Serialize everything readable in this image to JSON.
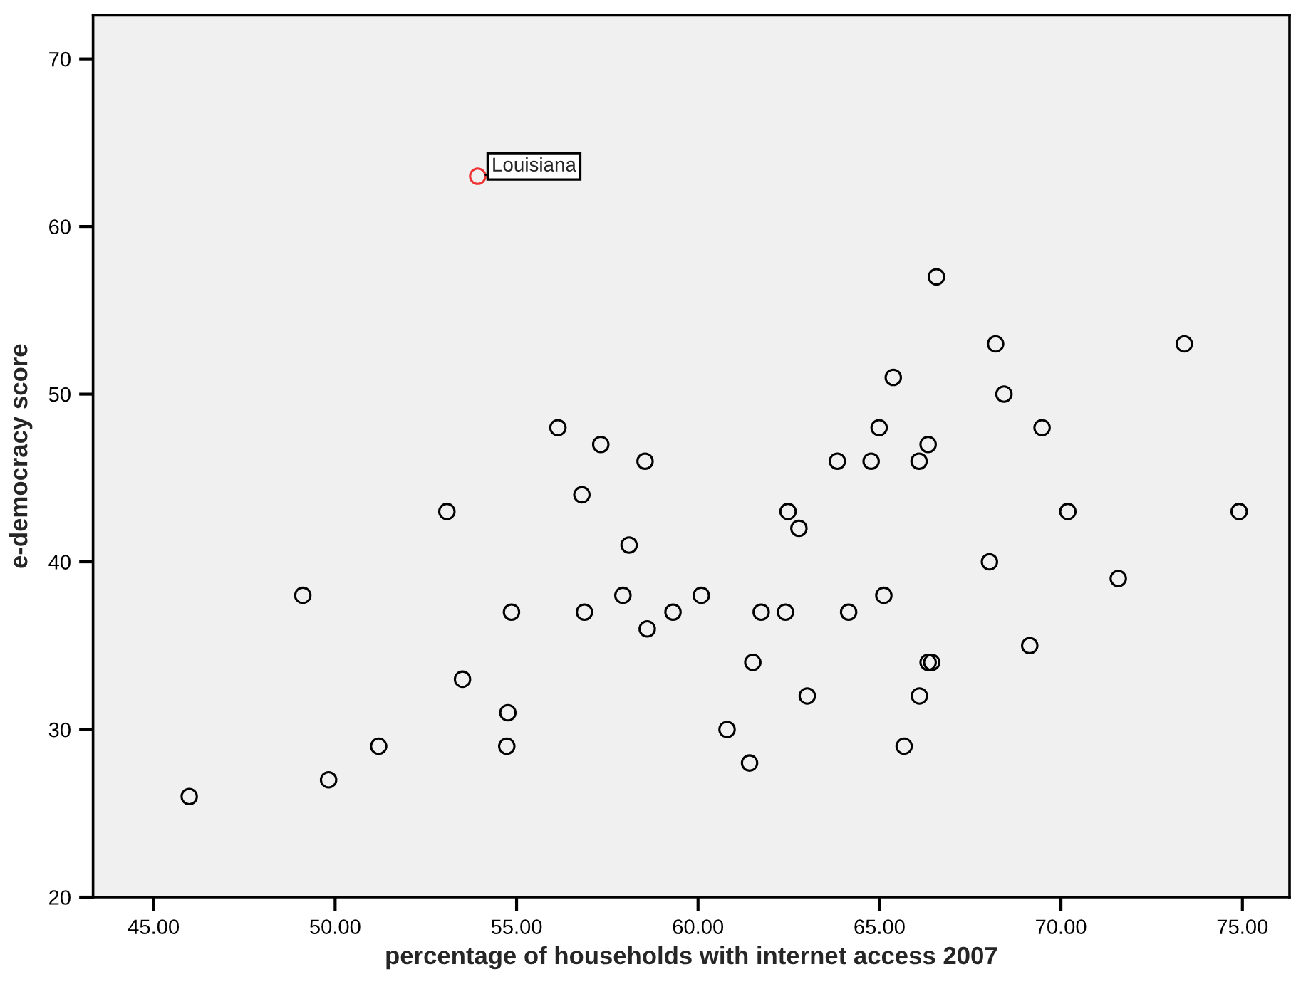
{
  "chart_data": {
    "type": "scatter",
    "xlabel": "percentage of households with internet access 2007",
    "ylabel": "e-democracy score",
    "x": [
      45.98,
      49.11,
      49.82,
      51.2,
      53.08,
      53.51,
      53.93,
      54.73,
      54.76,
      54.86,
      56.14,
      56.8,
      56.87,
      57.32,
      57.93,
      58.1,
      58.54,
      58.6,
      59.31,
      60.09,
      60.8,
      61.42,
      61.51,
      61.74,
      62.41,
      62.48,
      62.78,
      63.01,
      63.84,
      64.15,
      64.77,
      64.99,
      65.12,
      65.38,
      65.68,
      66.09,
      66.1,
      66.34,
      66.34,
      66.44,
      66.57,
      68.03,
      68.2,
      68.43,
      69.14,
      69.48,
      70.19,
      71.58,
      73.4,
      74.91
    ],
    "values": [
      26,
      38,
      27,
      29,
      43,
      33,
      63,
      29,
      31,
      37,
      48,
      44,
      37,
      47,
      38,
      41,
      46,
      36,
      37,
      38,
      30,
      28,
      34,
      37,
      37,
      43,
      42,
      32,
      46,
      37,
      46,
      48,
      38,
      51,
      29,
      46,
      32,
      47,
      34,
      34,
      57,
      40,
      53,
      50,
      35,
      48,
      43,
      39,
      53,
      43
    ],
    "colors": [
      "#000000",
      "#000000",
      "#000000",
      "#000000",
      "#000000",
      "#000000",
      "#ee3333",
      "#000000",
      "#000000",
      "#000000",
      "#000000",
      "#000000",
      "#000000",
      "#000000",
      "#000000",
      "#000000",
      "#000000",
      "#000000",
      "#000000",
      "#000000",
      "#000000",
      "#000000",
      "#000000",
      "#000000",
      "#000000",
      "#000000",
      "#000000",
      "#000000",
      "#000000",
      "#000000",
      "#000000",
      "#000000",
      "#000000",
      "#000000",
      "#000000",
      "#000000",
      "#000000",
      "#000000",
      "#000000",
      "#000000",
      "#000000",
      "#000000",
      "#000000",
      "#000000",
      "#000000",
      "#000000",
      "#000000",
      "#000000",
      "#000000",
      "#000000"
    ],
    "xlim": [
      43.33,
      76.3
    ],
    "ylim": [
      20,
      72.6
    ],
    "xticks": [
      {
        "value": 45,
        "label": "45.00"
      },
      {
        "value": 50,
        "label": "50.00"
      },
      {
        "value": 55,
        "label": "55.00"
      },
      {
        "value": 60,
        "label": "60.00"
      },
      {
        "value": 65,
        "label": "65.00"
      },
      {
        "value": 70,
        "label": "70.00"
      },
      {
        "value": 75,
        "label": "75.00"
      }
    ],
    "yticks": [
      20,
      30,
      40,
      50,
      60,
      70
    ],
    "marker": "circle",
    "grid": false,
    "legend": false,
    "annotations": [
      {
        "text": "Louisiana",
        "x": 53.93,
        "y": 63
      }
    ]
  }
}
